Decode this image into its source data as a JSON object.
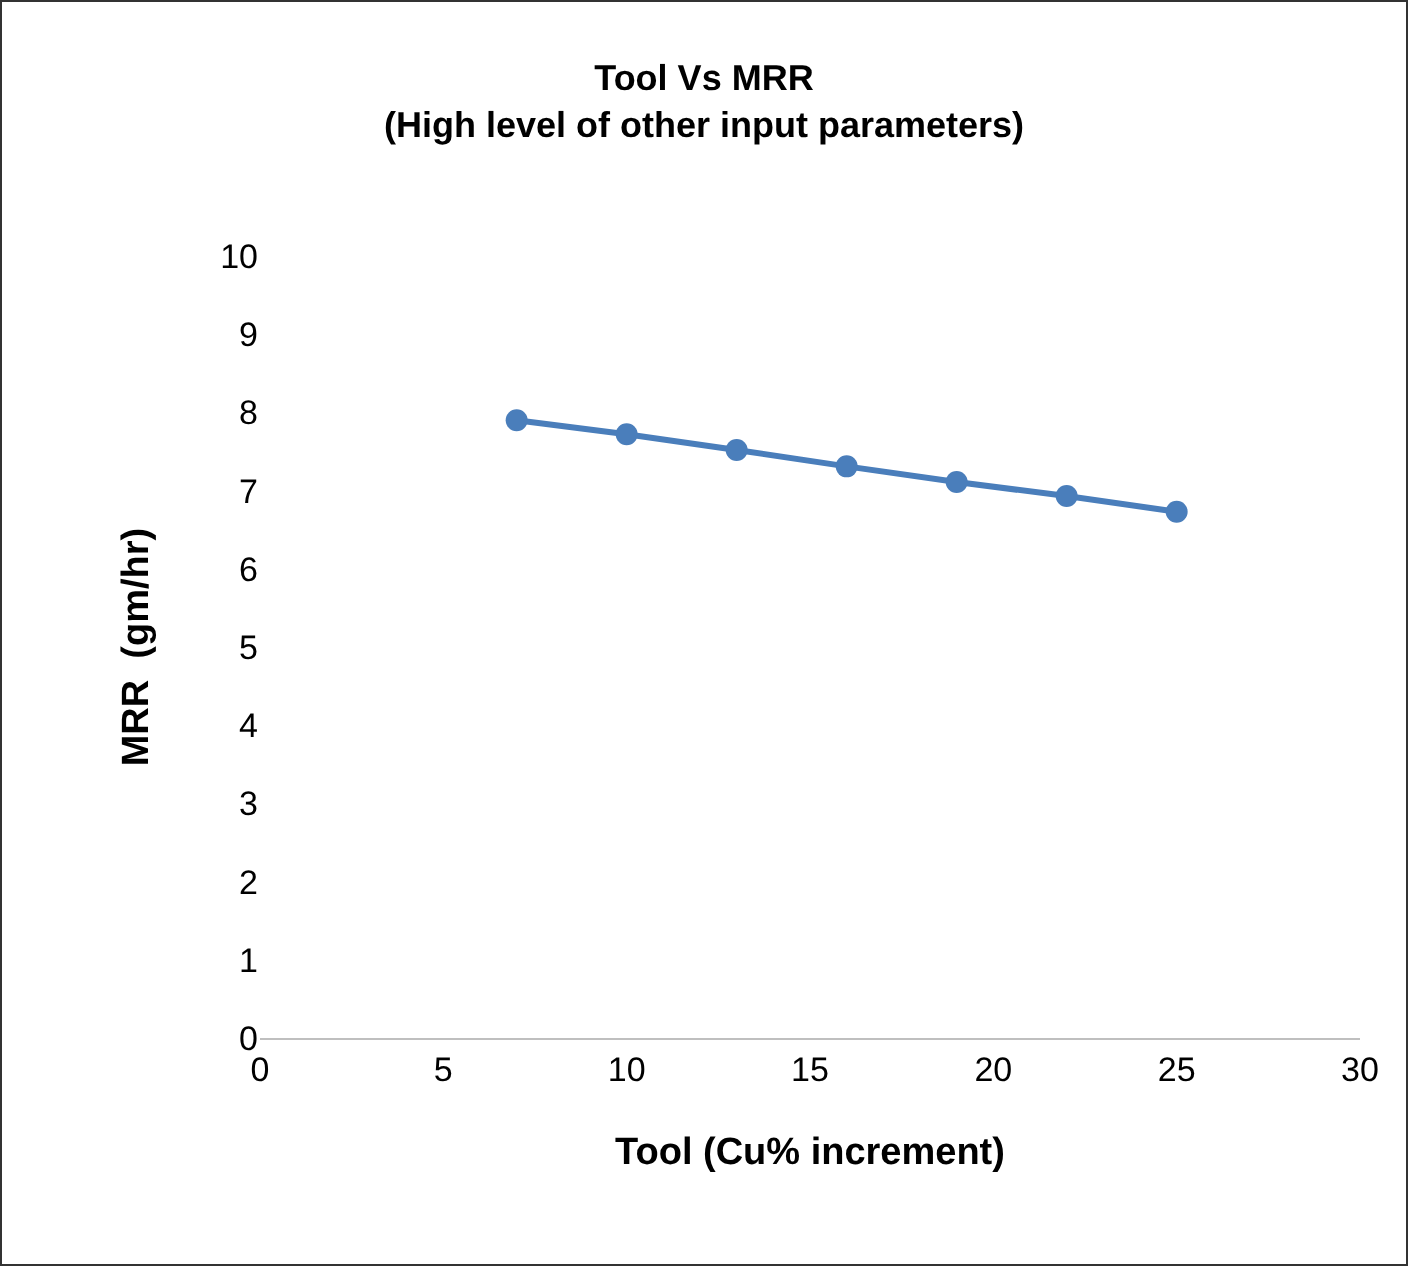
{
  "chart_data": {
    "type": "line",
    "title": "Tool Vs MRR\n(High level of other input parameters)",
    "xlabel": "Tool (Cu% increment)",
    "ylabel": "MRR  (gm/hr)",
    "x": [
      7,
      10,
      13,
      16,
      19,
      22,
      25
    ],
    "series": [
      {
        "color": "#4a7ebb",
        "values": [
          7.9,
          7.72,
          7.52,
          7.31,
          7.11,
          6.93,
          6.73
        ]
      }
    ],
    "xlim": [
      0,
      30
    ],
    "xticks": [
      0,
      5,
      10,
      15,
      20,
      25,
      30
    ],
    "ylim": [
      0,
      10
    ],
    "yticks": [
      0,
      1,
      2,
      3,
      4,
      5,
      6,
      7,
      8,
      9,
      10
    ],
    "grid": false,
    "marker": "circle",
    "line_style": "solid"
  }
}
